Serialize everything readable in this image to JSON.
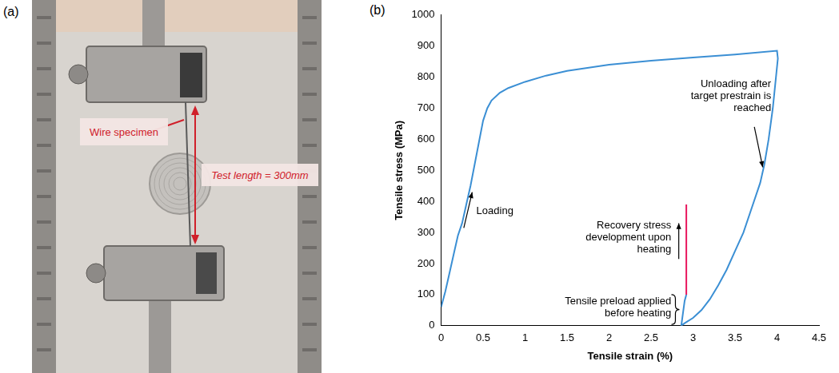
{
  "photo": {
    "letter": "(a)",
    "labels": [
      "Wire specimen",
      "Test length = 300mm"
    ]
  },
  "chart_letter": "(b)",
  "chart_data": {
    "type": "line",
    "x_label": "Tensile strain (%)",
    "y_label": "Tensile stress (MPa)",
    "xlim": [
      0,
      4.5
    ],
    "xticks": [
      0,
      0.5,
      1,
      1.5,
      2,
      2.5,
      3,
      3.5,
      4,
      4.5
    ],
    "ylim": [
      0,
      1000
    ],
    "yticks": [
      0,
      100,
      200,
      300,
      400,
      500,
      600,
      700,
      800,
      900,
      1000
    ],
    "grid": false,
    "series": [
      {
        "color": "#3b8fd4",
        "x": [
          0,
          0.05,
          0.1,
          0.15,
          0.2,
          0.25,
          0.3,
          0.35,
          0.4,
          0.45,
          0.5,
          0.55,
          0.6,
          0.7,
          0.8,
          1.0,
          1.25,
          1.5,
          2.0,
          2.5,
          3.0,
          3.5,
          4.0,
          4.01,
          3.95,
          3.9,
          3.85,
          3.8,
          3.7,
          3.6,
          3.5,
          3.4,
          3.3,
          3.2,
          3.1,
          3.0,
          2.9,
          2.86,
          2.88,
          2.9,
          2.92
        ],
        "values": [
          60,
          110,
          170,
          230,
          290,
          330,
          390,
          450,
          520,
          590,
          660,
          700,
          725,
          750,
          765,
          785,
          805,
          820,
          840,
          853,
          863,
          873,
          885,
          860,
          700,
          600,
          520,
          460,
          380,
          300,
          240,
          180,
          130,
          85,
          50,
          25,
          8,
          0,
          40,
          80,
          100
        ]
      },
      {
        "color": "#e8175d",
        "x": [
          2.92,
          2.92
        ],
        "values": [
          100,
          390
        ]
      }
    ],
    "annotations": [
      "Loading",
      "Unloading after target prestrain is reached",
      "Recovery stress development upon heating",
      "Tensile preload applied before heating"
    ]
  }
}
